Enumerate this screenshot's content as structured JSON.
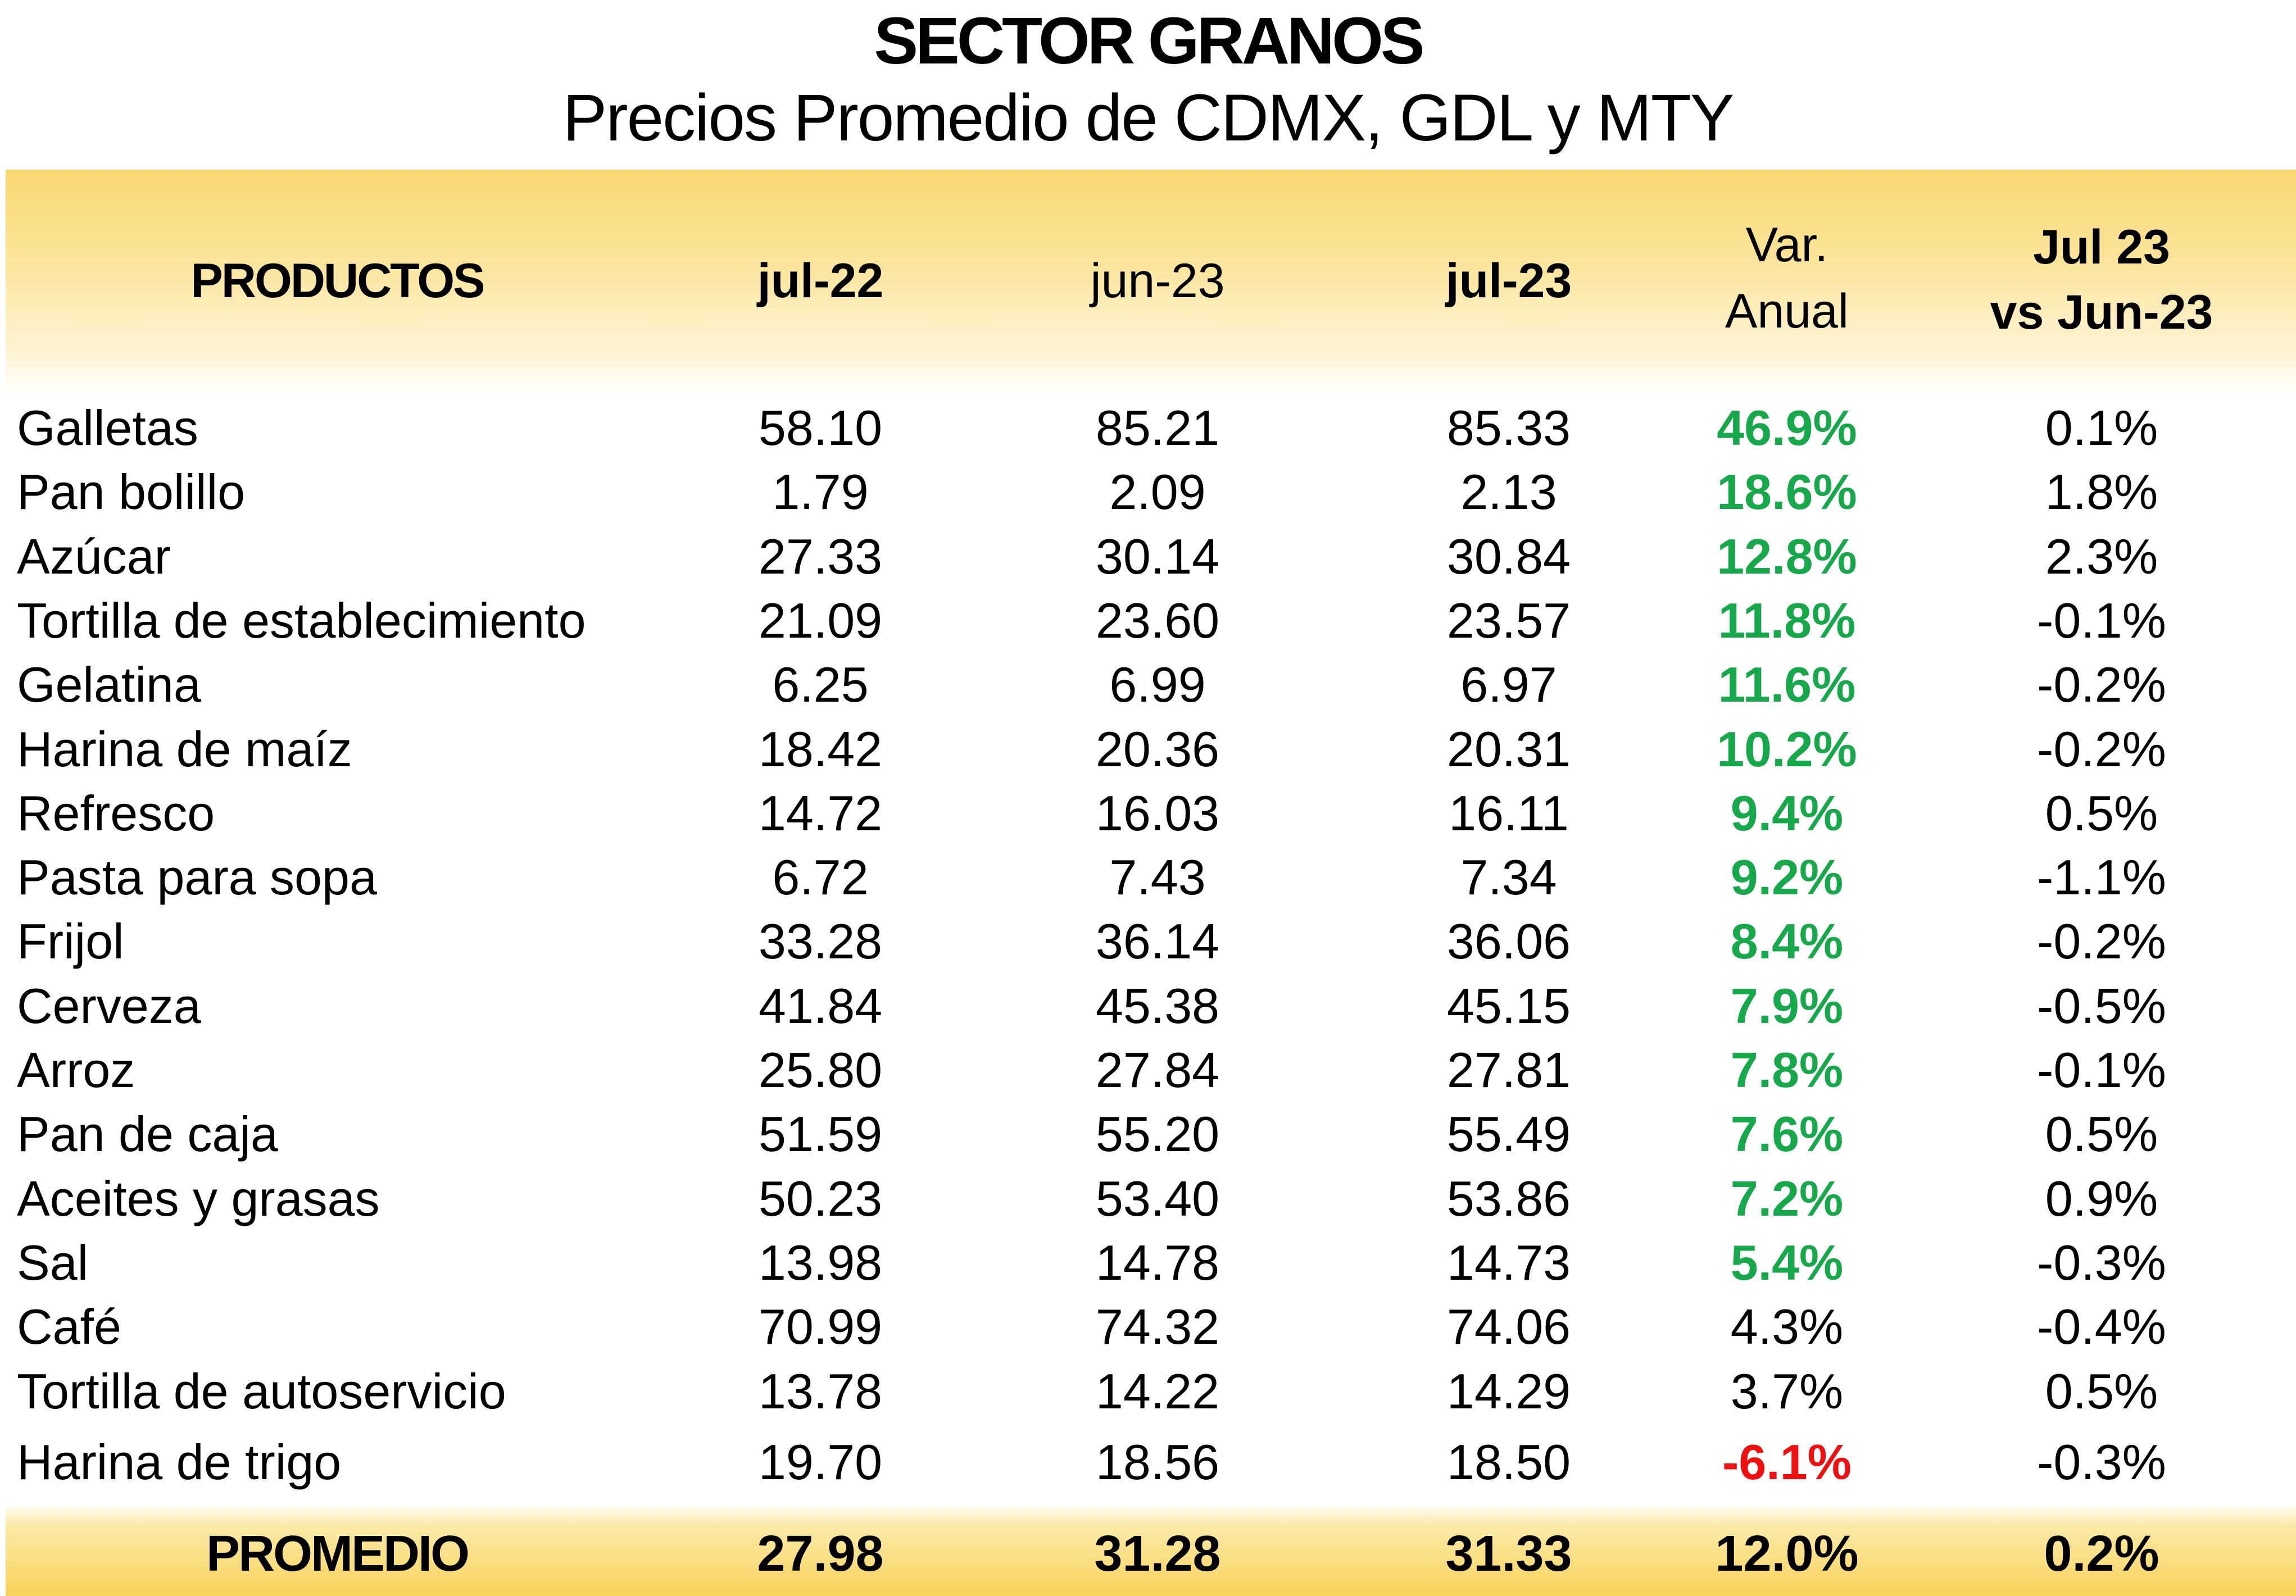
{
  "title": "SECTOR GRANOS",
  "subtitle": "Precios Promedio de CDMX, GDL y MTY",
  "headers": {
    "productos": "PRODUCTOS",
    "jul22": "jul-22",
    "jun23": "jun-23",
    "jul23": "jul-23",
    "var_line1": "Var.",
    "var_line2": "Anual",
    "mom_line1": "Jul 23",
    "mom_line2": "vs Jun-23"
  },
  "colors": {
    "positive": "#17a84b",
    "negative": "#ee1111",
    "header_band": "#f9d873",
    "footer_band": "#f8d35c"
  },
  "chart_data": {
    "type": "table",
    "columns": [
      "PRODUCTOS",
      "jul-22",
      "jun-23",
      "jul-23",
      "Var. Anual",
      "Jul 23 vs Jun-23"
    ],
    "rows": [
      {
        "product": "Galletas",
        "jul22": "58.10",
        "jun23": "85.21",
        "jul23": "85.33",
        "var": "46.9%",
        "mom": "0.1%",
        "var_style": "pos"
      },
      {
        "product": "Pan bolillo",
        "jul22": "1.79",
        "jun23": "2.09",
        "jul23": "2.13",
        "var": "18.6%",
        "mom": "1.8%",
        "var_style": "pos"
      },
      {
        "product": "Azúcar",
        "jul22": "27.33",
        "jun23": "30.14",
        "jul23": "30.84",
        "var": "12.8%",
        "mom": "2.3%",
        "var_style": "pos"
      },
      {
        "product": "Tortilla de establecimiento",
        "jul22": "21.09",
        "jun23": "23.60",
        "jul23": "23.57",
        "var": "11.8%",
        "mom": "-0.1%",
        "var_style": "pos"
      },
      {
        "product": "Gelatina",
        "jul22": "6.25",
        "jun23": "6.99",
        "jul23": "6.97",
        "var": "11.6%",
        "mom": "-0.2%",
        "var_style": "pos"
      },
      {
        "product": "Harina de maíz",
        "jul22": "18.42",
        "jun23": "20.36",
        "jul23": "20.31",
        "var": "10.2%",
        "mom": "-0.2%",
        "var_style": "pos"
      },
      {
        "product": "Refresco",
        "jul22": "14.72",
        "jun23": "16.03",
        "jul23": "16.11",
        "var": "9.4%",
        "mom": "0.5%",
        "var_style": "pos"
      },
      {
        "product": "Pasta para sopa",
        "jul22": "6.72",
        "jun23": "7.43",
        "jul23": "7.34",
        "var": "9.2%",
        "mom": "-1.1%",
        "var_style": "pos"
      },
      {
        "product": "Frijol",
        "jul22": "33.28",
        "jun23": "36.14",
        "jul23": "36.06",
        "var": "8.4%",
        "mom": "-0.2%",
        "var_style": "pos"
      },
      {
        "product": "Cerveza",
        "jul22": "41.84",
        "jun23": "45.38",
        "jul23": "45.15",
        "var": "7.9%",
        "mom": "-0.5%",
        "var_style": "pos"
      },
      {
        "product": "Arroz",
        "jul22": "25.80",
        "jun23": "27.84",
        "jul23": "27.81",
        "var": "7.8%",
        "mom": "-0.1%",
        "var_style": "pos"
      },
      {
        "product": "Pan de caja",
        "jul22": "51.59",
        "jun23": "55.20",
        "jul23": "55.49",
        "var": "7.6%",
        "mom": "0.5%",
        "var_style": "pos"
      },
      {
        "product": "Aceites y grasas",
        "jul22": "50.23",
        "jun23": "53.40",
        "jul23": "53.86",
        "var": "7.2%",
        "mom": "0.9%",
        "var_style": "pos"
      },
      {
        "product": "Sal",
        "jul22": "13.98",
        "jun23": "14.78",
        "jul23": "14.73",
        "var": "5.4%",
        "mom": "-0.3%",
        "var_style": "pos"
      },
      {
        "product": "Café",
        "jul22": "70.99",
        "jun23": "74.32",
        "jul23": "74.06",
        "var": "4.3%",
        "mom": "-0.4%",
        "var_style": "neu"
      },
      {
        "product": "Tortilla de autoservicio",
        "jul22": "13.78",
        "jun23": "14.22",
        "jul23": "14.29",
        "var": "3.7%",
        "mom": "0.5%",
        "var_style": "neu"
      },
      {
        "product": "Harina de trigo",
        "jul22": "19.70",
        "jun23": "18.56",
        "jul23": "18.50",
        "var": "-6.1%",
        "mom": "-0.3%",
        "var_style": "neg"
      }
    ],
    "footer": {
      "label": "PROMEDIO",
      "jul22": "27.98",
      "jun23": "31.28",
      "jul23": "31.33",
      "var": "12.0%",
      "mom": "0.2%"
    }
  }
}
